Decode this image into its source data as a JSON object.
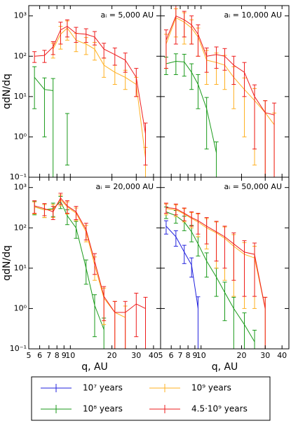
{
  "chart_data": [
    {
      "type": "line",
      "annotation": "aᵢ = 5,000 AU",
      "ylabel": "qdN/dq",
      "x": [
        5.5,
        6.5,
        7.5,
        8.5,
        9.5,
        11,
        13,
        15,
        17.5,
        21,
        25,
        30,
        35
      ],
      "xlim": [
        5,
        45
      ],
      "ylim": [
        0.1,
        1800
      ],
      "log_x": true,
      "log_y": true,
      "xticks": [
        5,
        6,
        7,
        8,
        9,
        10,
        20,
        30,
        40
      ],
      "yticks": [
        {
          "value": 0.1,
          "label": "10⁻¹"
        },
        {
          "value": 1,
          "label": "10⁰"
        },
        {
          "value": 10,
          "label": "10¹"
        },
        {
          "value": 100,
          "label": "10²"
        },
        {
          "value": 1000,
          "label": "10³"
        }
      ],
      "series": [
        {
          "name": "10⁸ years",
          "color": "#1a9a1a",
          "values": [
            30,
            15,
            14,
            null,
            2,
            null,
            null,
            null,
            null,
            null,
            null,
            null,
            null
          ],
          "errors": [
            25,
            14,
            14,
            null,
            1.8,
            null,
            null,
            null,
            null,
            null,
            null,
            null,
            null
          ]
        },
        {
          "name": "10⁹ years",
          "color": "#ffb020",
          "values": [
            null,
            null,
            150,
            350,
            500,
            250,
            200,
            150,
            60,
            40,
            30,
            20,
            0.3
          ],
          "errors": [
            null,
            null,
            60,
            200,
            250,
            120,
            90,
            70,
            30,
            20,
            15,
            10,
            0.25
          ]
        },
        {
          "name": "4.5·10⁹ years",
          "color": "#ee1c1c",
          "values": [
            100,
            105,
            170,
            450,
            550,
            370,
            350,
            300,
            150,
            110,
            80,
            30,
            1.2
          ],
          "errors": [
            30,
            35,
            60,
            250,
            250,
            150,
            130,
            110,
            60,
            50,
            40,
            20,
            1
          ]
        }
      ]
    },
    {
      "type": "line",
      "annotation": "aᵢ = 10,000 AU",
      "x": [
        5.5,
        6.5,
        7.5,
        8.5,
        9.5,
        11,
        13,
        15,
        17.5,
        21,
        25,
        30,
        35
      ],
      "xlim": [
        5,
        45
      ],
      "ylim": [
        0.1,
        1800
      ],
      "log_x": true,
      "log_y": true,
      "xticks": [
        5,
        6,
        7,
        8,
        9,
        10,
        20,
        30,
        40
      ],
      "yticks": [
        {
          "value": 0.1,
          "label": "10⁻¹"
        },
        {
          "value": 1,
          "label": "10⁰"
        },
        {
          "value": 10,
          "label": "10¹"
        },
        {
          "value": 100,
          "label": "10²"
        },
        {
          "value": 1000,
          "label": "10³"
        }
      ],
      "series": [
        {
          "name": "10⁸ years",
          "color": "#1a9a1a",
          "values": [
            65,
            75,
            72,
            40,
            20,
            5,
            0.4,
            null,
            null,
            null,
            null,
            null,
            null
          ],
          "errors": [
            30,
            40,
            40,
            25,
            15,
            4.5,
            0.35,
            null,
            null,
            null,
            null,
            null,
            null
          ]
        },
        {
          "name": "10⁹ years",
          "color": "#ffb020",
          "values": [
            200,
            900,
            700,
            500,
            300,
            80,
            70,
            60,
            30,
            15,
            8,
            4,
            2
          ],
          "errors": [
            150,
            600,
            500,
            300,
            200,
            60,
            50,
            45,
            25,
            14,
            7.8,
            3.9,
            1.9
          ]
        },
        {
          "name": "4.5·10⁹ years",
          "color": "#ee1c1c",
          "values": [
            250,
            1000,
            800,
            600,
            350,
            100,
            110,
            100,
            60,
            40,
            10,
            4,
            3.5
          ],
          "errors": [
            200,
            800,
            500,
            400,
            250,
            60,
            60,
            55,
            40,
            30,
            9.5,
            3.9,
            3.4
          ]
        }
      ]
    },
    {
      "type": "line",
      "annotation": "aᵢ = 20,000 AU",
      "ylabel": "qdN/dq",
      "xlabel": "q, AU",
      "x": [
        5.5,
        6.5,
        7.5,
        8.5,
        9.5,
        11,
        13,
        15,
        17.5,
        21,
        25,
        30,
        35
      ],
      "xlim": [
        5,
        45
      ],
      "ylim": [
        0.1,
        1800
      ],
      "log_x": true,
      "log_y": true,
      "xticks": [
        5,
        6,
        7,
        8,
        9,
        10,
        20,
        30,
        40
      ],
      "yticks": [
        {
          "value": 0.1,
          "label": "10⁻¹"
        },
        {
          "value": 1,
          "label": "10⁰"
        },
        {
          "value": 10,
          "label": "10¹"
        },
        {
          "value": 100,
          "label": "10²"
        },
        {
          "value": 1000,
          "label": "10³"
        }
      ],
      "series": [
        {
          "name": "10⁸ years",
          "color": "#1a9a1a",
          "values": [
            330,
            280,
            300,
            450,
            200,
            100,
            10,
            1.2,
            0.3,
            null,
            null,
            null,
            null
          ],
          "errors": [
            120,
            100,
            110,
            150,
            80,
            45,
            6,
            1,
            0.28,
            null,
            null,
            null,
            null
          ]
        },
        {
          "name": "10⁹ years",
          "color": "#ffb020",
          "values": [
            330,
            280,
            280,
            500,
            330,
            230,
            80,
            12,
            1.8,
            0.8,
            0.6,
            null,
            null
          ],
          "errors": [
            110,
            100,
            100,
            150,
            110,
            80,
            35,
            7,
            1.4,
            0.7,
            0.55,
            null,
            null
          ]
        },
        {
          "name": "4.5·10⁹ years",
          "color": "#ee1c1c",
          "values": [
            350,
            300,
            250,
            550,
            350,
            250,
            90,
            15,
            2,
            0.8,
            0.8,
            1.3,
            1
          ],
          "errors": [
            120,
            100,
            90,
            170,
            120,
            90,
            40,
            8,
            1.5,
            0.7,
            0.7,
            1.1,
            0.9
          ]
        }
      ]
    },
    {
      "type": "line",
      "annotation": "aᵢ = 50,000 AU",
      "xlabel": "q, AU",
      "x": [
        5.5,
        6.5,
        7.5,
        8.5,
        9.5,
        11,
        13,
        15,
        17.5,
        21,
        25,
        30,
        35
      ],
      "xlim": [
        5,
        45
      ],
      "ylim": [
        0.1,
        1800
      ],
      "log_x": true,
      "log_y": true,
      "xticks": [
        5,
        6,
        7,
        8,
        9,
        10,
        20,
        30,
        40
      ],
      "yticks": [
        {
          "value": 0.1,
          "label": "10⁻¹"
        },
        {
          "value": 1,
          "label": "10⁰"
        },
        {
          "value": 10,
          "label": "10¹"
        },
        {
          "value": 100,
          "label": "10²"
        },
        {
          "value": 1000,
          "label": "10³"
        }
      ],
      "series": [
        {
          "name": "10⁷ years",
          "color": "#2222dd",
          "values": [
            110,
            60,
            25,
            12,
            1,
            null,
            null,
            null,
            null,
            null,
            null,
            null,
            null
          ],
          "errors": [
            40,
            25,
            12,
            6,
            0.95,
            null,
            null,
            null,
            null,
            null,
            null,
            null,
            null
          ]
        },
        {
          "name": "10⁸ years",
          "color": "#1a9a1a",
          "values": [
            250,
            200,
            140,
            80,
            40,
            15,
            6,
            2.5,
            1,
            0.4,
            0.15,
            null,
            null
          ],
          "errors": [
            80,
            70,
            55,
            35,
            20,
            9,
            4,
            2,
            0.9,
            0.38,
            0.14,
            null,
            null
          ]
        },
        {
          "name": "10⁹ years",
          "color": "#ffb020",
          "values": [
            300,
            280,
            220,
            170,
            140,
            100,
            75,
            55,
            35,
            22,
            18,
            1,
            null
          ],
          "errors": [
            90,
            90,
            80,
            70,
            80,
            70,
            65,
            50,
            33,
            21,
            17,
            0.9,
            null
          ]
        },
        {
          "name": "4.5·10⁹ years",
          "color": "#ee1c1c",
          "values": [
            320,
            300,
            230,
            180,
            150,
            110,
            80,
            60,
            40,
            25,
            22,
            1,
            null
          ],
          "errors": [
            90,
            90,
            80,
            70,
            80,
            70,
            65,
            50,
            35,
            23,
            20,
            0.9,
            null
          ]
        }
      ]
    }
  ]
}
